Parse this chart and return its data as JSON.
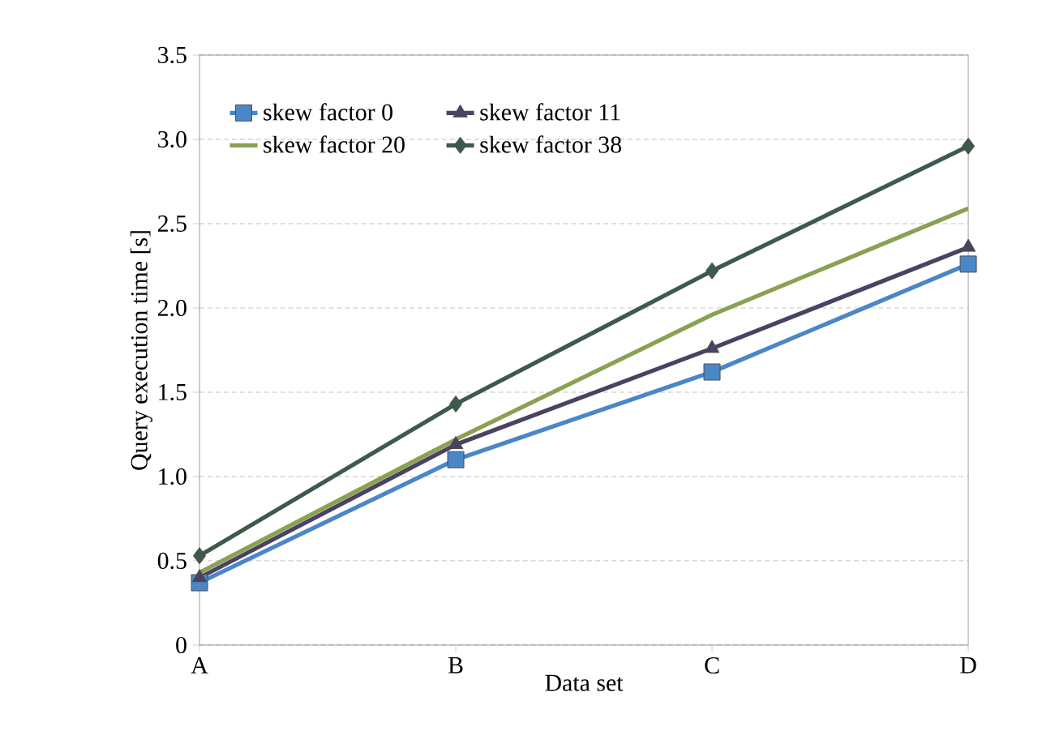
{
  "chart_data": {
    "type": "line",
    "xlabel": "Data set",
    "ylabel": "Query execution time [s]",
    "categories": [
      "A",
      "B",
      "C",
      "D"
    ],
    "ylim": [
      0,
      3.5
    ],
    "yticks": [
      0,
      {
        "value": 0.5,
        "label": "0.5"
      },
      {
        "value": 1,
        "label": "1.0"
      },
      {
        "value": 1.5,
        "label": "1.5"
      },
      {
        "value": 2,
        "label": "2.0"
      },
      {
        "value": 2.5,
        "label": "2.5"
      },
      {
        "value": 3,
        "label": "3.0"
      },
      {
        "value": 3.5,
        "label": "3.5"
      }
    ],
    "grid": "y",
    "legend": "top left",
    "series": [
      {
        "name": "skew factor 0",
        "color": "#4a86c8",
        "marker": "square",
        "values": [
          0.37,
          1.1,
          1.62,
          2.26
        ]
      },
      {
        "name": "skew factor 11",
        "color": "#4a4262",
        "marker": "triangle",
        "values": [
          0.4,
          1.19,
          1.76,
          2.36
        ]
      },
      {
        "name": "skew factor 20",
        "color": "#8aa152",
        "marker": "none",
        "values": [
          0.43,
          1.22,
          1.96,
          2.59
        ]
      },
      {
        "name": "skew factor 38",
        "color": "#3d5a4a",
        "marker": "diamond",
        "values": [
          0.53,
          1.43,
          2.22,
          2.96
        ]
      }
    ]
  }
}
